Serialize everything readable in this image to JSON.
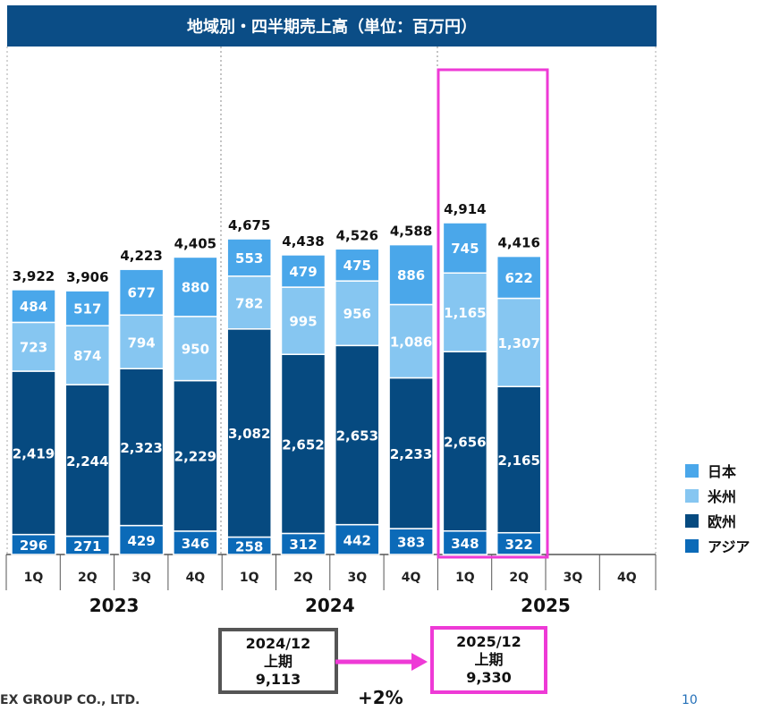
{
  "title": "地域別・四半期売上高（単位：百万円）",
  "colors": {
    "japan": "#4aa7ea",
    "americas": "#86c6f1",
    "europe": "#064a80",
    "asia": "#0b6ab8",
    "highlight": "#ee3ad6",
    "title_bg": "#0b4d86"
  },
  "chart_data": {
    "type": "bar",
    "stacked": true,
    "title": "地域別・四半期売上高（単位：百万円）",
    "years": [
      "2023",
      "2024",
      "2025"
    ],
    "quarters": [
      "1Q",
      "2Q",
      "3Q",
      "4Q"
    ],
    "categories": [
      "2023 1Q",
      "2023 2Q",
      "2023 3Q",
      "2023 4Q",
      "2024 1Q",
      "2024 2Q",
      "2024 3Q",
      "2024 4Q",
      "2025 1Q",
      "2025 2Q",
      "2025 3Q",
      "2025 4Q"
    ],
    "series": [
      {
        "name": "アジア",
        "key": "asia",
        "values": [
          296,
          271,
          429,
          346,
          258,
          312,
          442,
          383,
          348,
          322,
          null,
          null
        ]
      },
      {
        "name": "欧州",
        "key": "europe",
        "values": [
          2419,
          2244,
          2323,
          2229,
          3082,
          2652,
          2653,
          2233,
          2656,
          2165,
          null,
          null
        ]
      },
      {
        "name": "米州",
        "key": "americas",
        "values": [
          723,
          874,
          794,
          950,
          782,
          995,
          956,
          1086,
          1165,
          1307,
          null,
          null
        ]
      },
      {
        "name": "日本",
        "key": "japan",
        "values": [
          484,
          517,
          677,
          880,
          553,
          479,
          475,
          886,
          745,
          622,
          null,
          null
        ]
      }
    ],
    "totals": [
      3922,
      3906,
      4223,
      4405,
      4675,
      4438,
      4526,
      4588,
      4914,
      4416,
      null,
      null
    ],
    "legend_position": "right",
    "legend_order": [
      "日本",
      "米州",
      "欧州",
      "アジア"
    ]
  },
  "comparison": {
    "prev": {
      "period": "2024/12",
      "label": "上期",
      "value": "9,113"
    },
    "curr": {
      "period": "2025/12",
      "label": "上期",
      "value": "9,330"
    },
    "growth": "+2%"
  },
  "footer": {
    "company": "EX GROUP CO., LTD.",
    "page": "10"
  }
}
